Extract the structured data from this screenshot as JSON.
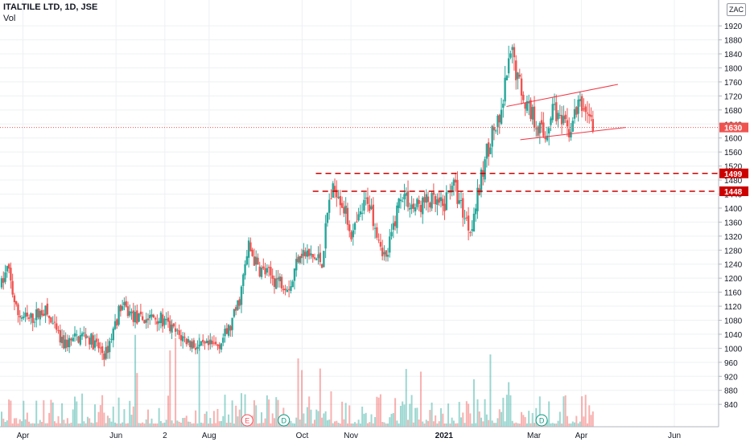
{
  "header": {
    "title": "ITALTILE LTD, 1D, JSE",
    "indicator": "Vol",
    "currency": "ZAC"
  },
  "colors": {
    "up": "#26a69a",
    "down": "#ef5350",
    "level_line": "#cc0000",
    "level_label_bg": "#cc0000",
    "last_price_bg": "#ef5350",
    "channel": "#f23645",
    "grid": "#eef0f3"
  },
  "chart_data": {
    "type": "candlestick",
    "title": "ITALTILE LTD, 1D, JSE",
    "ylim": [
      800,
      1960
    ],
    "y_ticks": [
      840,
      880,
      920,
      960,
      1000,
      1040,
      1080,
      1120,
      1160,
      1200,
      1240,
      1280,
      1320,
      1360,
      1400,
      1440,
      1480,
      1520,
      1560,
      1600,
      1640,
      1680,
      1720,
      1760,
      1800,
      1840,
      1880,
      1920
    ],
    "x_labels": [
      {
        "label": "Apr",
        "d": 14
      },
      {
        "label": "Jun",
        "d": 75
      },
      {
        "label": "2",
        "d": 107
      },
      {
        "label": "Aug",
        "d": 136
      },
      {
        "label": "Oct",
        "d": 197
      },
      {
        "label": "Nov",
        "d": 229
      },
      {
        "label": "2021",
        "d": 290
      },
      {
        "label": "Mar",
        "d": 349
      },
      {
        "label": "Apr",
        "d": 380
      },
      {
        "label": "Jun",
        "d": 441
      }
    ],
    "x_range": [
      0,
      470
    ],
    "last_price": 1630,
    "levels": [
      {
        "value": 1499,
        "label": "1499",
        "from_d": 206
      },
      {
        "value": 1448,
        "label": "1448",
        "from_d": 204
      }
    ],
    "channel": {
      "upper": [
        {
          "d": 331,
          "v": 1690
        },
        {
          "d": 404,
          "v": 1753
        }
      ],
      "lower": [
        {
          "d": 340,
          "v": 1595
        },
        {
          "d": 409,
          "v": 1630
        }
      ]
    },
    "events": [
      {
        "label": "E",
        "d": 161
      },
      {
        "label": "D",
        "d": 185
      },
      {
        "label": "D",
        "d": 354
      }
    ],
    "anchors": [
      {
        "d": 0,
        "v": 1180
      },
      {
        "d": 4,
        "v": 1230
      },
      {
        "d": 10,
        "v": 1100
      },
      {
        "d": 18,
        "v": 1080
      },
      {
        "d": 28,
        "v": 1110
      },
      {
        "d": 40,
        "v": 1010
      },
      {
        "d": 55,
        "v": 1040
      },
      {
        "d": 68,
        "v": 980
      },
      {
        "d": 78,
        "v": 1120
      },
      {
        "d": 90,
        "v": 1080
      },
      {
        "d": 102,
        "v": 1090
      },
      {
        "d": 115,
        "v": 1040
      },
      {
        "d": 130,
        "v": 1000
      },
      {
        "d": 142,
        "v": 1010
      },
      {
        "d": 150,
        "v": 1060
      },
      {
        "d": 156,
        "v": 1140
      },
      {
        "d": 162,
        "v": 1290
      },
      {
        "d": 168,
        "v": 1230
      },
      {
        "d": 178,
        "v": 1200
      },
      {
        "d": 190,
        "v": 1180
      },
      {
        "d": 195,
        "v": 1280
      },
      {
        "d": 202,
        "v": 1260
      },
      {
        "d": 210,
        "v": 1250
      },
      {
        "d": 215,
        "v": 1430
      },
      {
        "d": 220,
        "v": 1460
      },
      {
        "d": 230,
        "v": 1320
      },
      {
        "d": 240,
        "v": 1430
      },
      {
        "d": 252,
        "v": 1250
      },
      {
        "d": 262,
        "v": 1450
      },
      {
        "d": 270,
        "v": 1400
      },
      {
        "d": 280,
        "v": 1420
      },
      {
        "d": 290,
        "v": 1400
      },
      {
        "d": 295,
        "v": 1480
      },
      {
        "d": 300,
        "v": 1420
      },
      {
        "d": 307,
        "v": 1340
      },
      {
        "d": 313,
        "v": 1450
      },
      {
        "d": 318,
        "v": 1560
      },
      {
        "d": 322,
        "v": 1620
      },
      {
        "d": 327,
        "v": 1640
      },
      {
        "d": 331,
        "v": 1780
      },
      {
        "d": 335,
        "v": 1840
      },
      {
        "d": 339,
        "v": 1760
      },
      {
        "d": 344,
        "v": 1700
      },
      {
        "d": 350,
        "v": 1650
      },
      {
        "d": 356,
        "v": 1600
      },
      {
        "d": 362,
        "v": 1700
      },
      {
        "d": 366,
        "v": 1640
      },
      {
        "d": 372,
        "v": 1620
      },
      {
        "d": 378,
        "v": 1690
      },
      {
        "d": 384,
        "v": 1680
      },
      {
        "d": 388,
        "v": 1630
      }
    ]
  }
}
